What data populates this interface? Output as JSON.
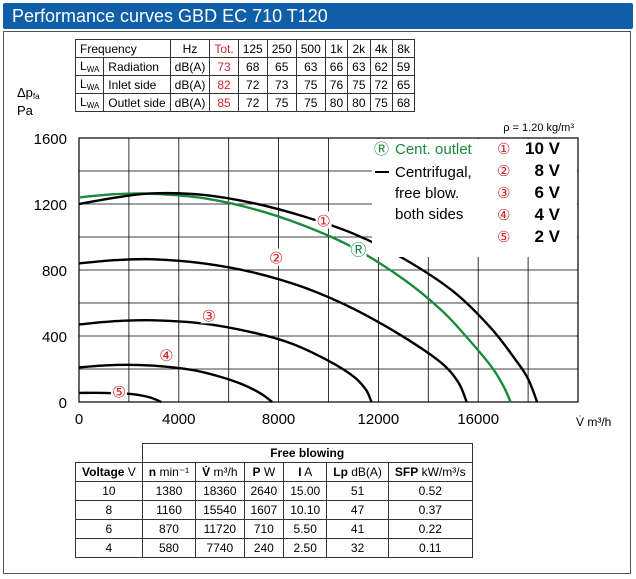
{
  "title": "Performance curves GBD EC 710 T120",
  "noise_table": {
    "header": {
      "label": "Frequency",
      "unit": "Hz",
      "tot": "Tot.",
      "freqs": [
        "125",
        "250",
        "500",
        "1k",
        "2k",
        "4k",
        "8k"
      ]
    },
    "rows": [
      {
        "lwa": "L",
        "lwa_sub": "WA",
        "label": "Radiation",
        "unit": "dB(A)",
        "tot": "73",
        "values": [
          "68",
          "65",
          "63",
          "66",
          "63",
          "62",
          "59"
        ]
      },
      {
        "lwa": "L",
        "lwa_sub": "WA",
        "label": "Inlet side",
        "unit": "dB(A)",
        "tot": "82",
        "values": [
          "72",
          "73",
          "75",
          "76",
          "75",
          "72",
          "65"
        ]
      },
      {
        "lwa": "L",
        "lwa_sub": "WA",
        "label": "Outlet side",
        "unit": "dB(A)",
        "tot": "85",
        "values": [
          "72",
          "75",
          "75",
          "80",
          "80",
          "75",
          "68"
        ]
      }
    ]
  },
  "ylabel": {
    "symbol": "Δp",
    "sub": "fa",
    "unit": "Pa"
  },
  "chart_data": {
    "type": "line",
    "xlabel": "V̇  m³/h",
    "ylabel": "Δp_fa Pa",
    "density_note": "ρ = 1.20 kg/m³",
    "xlim": [
      0,
      20000
    ],
    "ylim": [
      0,
      1600
    ],
    "xticks": [
      "0",
      "4000",
      "8000",
      "12000",
      "16000"
    ],
    "xtick_values": [
      0,
      4000,
      8000,
      12000,
      16000
    ],
    "yticks": [
      "0",
      "400",
      "800",
      "1200",
      "1600"
    ],
    "ytick_values": [
      0,
      400,
      800,
      1200,
      1600
    ],
    "grid": true,
    "colors": {
      "voltage": "#000000",
      "cent_outlet": "#1a8a3c",
      "marker": "#d4272e"
    },
    "series": [
      {
        "name": "10 V",
        "marker": "①",
        "color": "#000000",
        "marker_at": [
          9800,
          1100
        ],
        "points": [
          [
            0,
            1200
          ],
          [
            1500,
            1240
          ],
          [
            3000,
            1265
          ],
          [
            5000,
            1255
          ],
          [
            7000,
            1205
          ],
          [
            9000,
            1125
          ],
          [
            11000,
            1020
          ],
          [
            13000,
            870
          ],
          [
            15000,
            670
          ],
          [
            16500,
            450
          ],
          [
            17500,
            255
          ],
          [
            18000,
            140
          ],
          [
            18360,
            0
          ]
        ]
      },
      {
        "name": "8 V",
        "marker": "②",
        "color": "#000000",
        "marker_at": [
          7900,
          875
        ],
        "points": [
          [
            0,
            840
          ],
          [
            1500,
            860
          ],
          [
            3000,
            865
          ],
          [
            5000,
            840
          ],
          [
            7000,
            785
          ],
          [
            9000,
            695
          ],
          [
            11000,
            565
          ],
          [
            13000,
            395
          ],
          [
            14500,
            240
          ],
          [
            15200,
            120
          ],
          [
            15540,
            0
          ]
        ]
      },
      {
        "name": "6 V",
        "marker": "③",
        "color": "#000000",
        "marker_at": [
          5200,
          525
        ],
        "points": [
          [
            0,
            470
          ],
          [
            1500,
            490
          ],
          [
            3000,
            495
          ],
          [
            5000,
            475
          ],
          [
            7000,
            420
          ],
          [
            8500,
            355
          ],
          [
            10000,
            250
          ],
          [
            11000,
            155
          ],
          [
            11500,
            75
          ],
          [
            11720,
            0
          ]
        ]
      },
      {
        "name": "4 V",
        "marker": "④",
        "color": "#000000",
        "marker_at": [
          3500,
          285
        ],
        "points": [
          [
            0,
            210
          ],
          [
            1500,
            225
          ],
          [
            3000,
            220
          ],
          [
            4500,
            195
          ],
          [
            5500,
            160
          ],
          [
            6500,
            110
          ],
          [
            7300,
            50
          ],
          [
            7740,
            0
          ]
        ]
      },
      {
        "name": "2 V",
        "marker": "⑤",
        "color": "#000000",
        "marker_at": [
          1600,
          65
        ],
        "points": [
          [
            0,
            55
          ],
          [
            1000,
            55
          ],
          [
            2000,
            50
          ],
          [
            2800,
            30
          ],
          [
            3300,
            0
          ]
        ]
      },
      {
        "name": "Cent. outlet",
        "marker": "Ⓡ",
        "color": "#1a8a3c",
        "marker_at": [
          11200,
          925
        ],
        "points": [
          [
            0,
            1240
          ],
          [
            1500,
            1260
          ],
          [
            3000,
            1262
          ],
          [
            5000,
            1235
          ],
          [
            7000,
            1170
          ],
          [
            9000,
            1070
          ],
          [
            11000,
            935
          ],
          [
            13000,
            745
          ],
          [
            14500,
            560
          ],
          [
            15500,
            400
          ],
          [
            16500,
            220
          ],
          [
            17000,
            100
          ],
          [
            17300,
            0
          ]
        ]
      }
    ]
  },
  "legend": {
    "cent_outlet": {
      "symbol": "Ⓡ",
      "text": "Cent. outlet"
    },
    "free_blow": [
      "Centrifugal,",
      "free blow.",
      "both sides"
    ],
    "voltages": [
      {
        "symbol": "①",
        "text": "10 V"
      },
      {
        "symbol": "②",
        "text": "8 V"
      },
      {
        "symbol": "③",
        "text": "6 V"
      },
      {
        "symbol": "④",
        "text": "4 V"
      },
      {
        "symbol": "⑤",
        "text": "2 V"
      }
    ]
  },
  "free_table": {
    "group_header": "Free blowing",
    "headers": [
      {
        "bold": "Voltage",
        "unit": " V"
      },
      {
        "bold": "n",
        "unit": " min⁻¹"
      },
      {
        "bold": "V̇",
        "unit": " m³/h"
      },
      {
        "bold": "P",
        "unit": " W"
      },
      {
        "bold": "I",
        "unit": " A"
      },
      {
        "bold": "Lp",
        "unit": " dB(A)"
      },
      {
        "bold": "SFP",
        "unit": " kW/m³/s"
      }
    ],
    "rows": [
      [
        "10",
        "1380",
        "18360",
        "2640",
        "15.00",
        "51",
        "0.52"
      ],
      [
        "8",
        "1160",
        "15540",
        "1607",
        "10.10",
        "47",
        "0.37"
      ],
      [
        "6",
        "870",
        "11720",
        "710",
        "5.50",
        "41",
        "0.22"
      ],
      [
        "4",
        "580",
        "7740",
        "240",
        "2.50",
        "32",
        "0.11"
      ]
    ]
  }
}
